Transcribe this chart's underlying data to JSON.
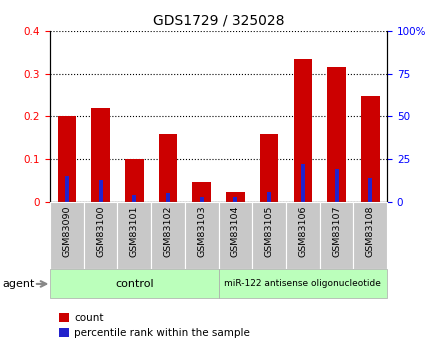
{
  "title": "GDS1729 / 325028",
  "samples": [
    "GSM83090",
    "GSM83100",
    "GSM83101",
    "GSM83102",
    "GSM83103",
    "GSM83104",
    "GSM83105",
    "GSM83106",
    "GSM83107",
    "GSM83108"
  ],
  "count_values": [
    0.2,
    0.22,
    0.1,
    0.16,
    0.047,
    0.022,
    0.16,
    0.335,
    0.315,
    0.248
  ],
  "percentile_values": [
    15,
    13,
    4,
    5,
    3,
    3,
    6,
    22,
    19,
    14
  ],
  "left_ylim": [
    0,
    0.4
  ],
  "right_ylim": [
    0,
    100
  ],
  "left_yticks": [
    0,
    0.1,
    0.2,
    0.3,
    0.4
  ],
  "right_yticks": [
    0,
    25,
    50,
    75,
    100
  ],
  "right_yticklabels": [
    "0",
    "25",
    "50",
    "75",
    "100%"
  ],
  "bar_color_red": "#cc0000",
  "bar_color_blue": "#2222cc",
  "control_label": "control",
  "treatment_label": "miR-122 antisense oligonucleotide",
  "group_bg_color": "#bbffbb",
  "tick_label_bg": "#c8c8c8",
  "agent_label": "agent",
  "legend_count": "count",
  "legend_percentile": "percentile rank within the sample",
  "red_bar_width": 0.55,
  "blue_bar_width": 0.12
}
